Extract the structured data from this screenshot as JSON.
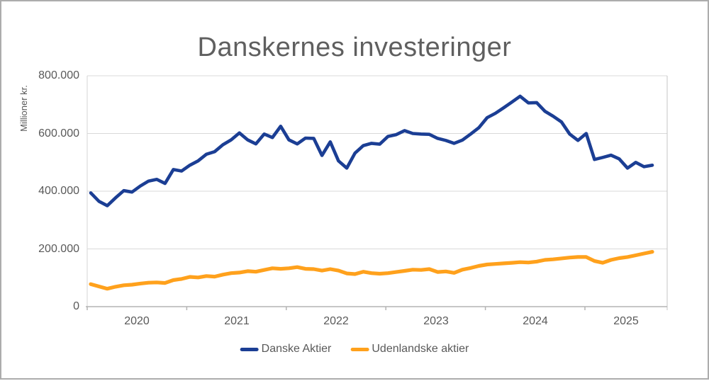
{
  "title": "Danskernes investeringer",
  "y_axis": {
    "label": "Millioner kr.",
    "ticks": [
      "800.000",
      "600.000",
      "400.000",
      "200.000",
      "0"
    ]
  },
  "x_axis": {
    "ticks": [
      "2020",
      "2021",
      "2022",
      "2023",
      "2024",
      "2025"
    ]
  },
  "legend": {
    "items": [
      {
        "label": "Danske Aktier",
        "color": "#1b3e94"
      },
      {
        "label": "Udenlandske aktier",
        "color": "#ffa11c"
      }
    ]
  },
  "chart_data": {
    "type": "line",
    "title": "Danskernes investeringer",
    "ylabel": "Millioner kr.",
    "unit": "millioner kr.",
    "ylim": [
      0,
      800000
    ],
    "y_tick_values": [
      800000,
      600000,
      400000,
      200000,
      0
    ],
    "grid": "horizontal gridlines on",
    "legend_position": "bottom",
    "x_frequency": "monthly",
    "x_start": "2020-01",
    "x_end": "2025-09",
    "x_tick_labels": [
      "2020",
      "2021",
      "2022",
      "2023",
      "2024",
      "2025"
    ],
    "series": [
      {
        "name": "Danske Aktier",
        "color": "#1b3e94",
        "values": [
          394000,
          365000,
          350000,
          377000,
          402000,
          397000,
          418000,
          435000,
          441000,
          427000,
          475000,
          470000,
          490000,
          505000,
          528000,
          537000,
          561000,
          578000,
          602000,
          578000,
          564000,
          598000,
          586000,
          625000,
          578000,
          564000,
          584000,
          583000,
          524000,
          571000,
          505000,
          480000,
          532000,
          558000,
          566000,
          563000,
          590000,
          596000,
          610000,
          600000,
          598000,
          597000,
          583000,
          576000,
          566000,
          577000,
          598000,
          620000,
          655000,
          670000,
          689000,
          709000,
          729000,
          706000,
          707000,
          677000,
          660000,
          640000,
          598000,
          576000,
          600000,
          510000,
          517000,
          525000,
          512000,
          480000,
          500000,
          485000,
          490000
        ]
      },
      {
        "name": "Udenlandske aktier",
        "color": "#ffa11c",
        "values": [
          78000,
          70000,
          62000,
          69000,
          74000,
          76000,
          80000,
          83000,
          84000,
          82000,
          92000,
          96000,
          103000,
          101000,
          106000,
          104000,
          111000,
          116000,
          118000,
          123000,
          121000,
          127000,
          133000,
          131000,
          133000,
          137000,
          131000,
          130000,
          125000,
          130000,
          125000,
          115000,
          113000,
          121000,
          116000,
          114000,
          116000,
          120000,
          124000,
          128000,
          127000,
          130000,
          120000,
          122000,
          117000,
          128000,
          134000,
          141000,
          146000,
          148000,
          150000,
          152000,
          154000,
          153000,
          156000,
          162000,
          164000,
          167000,
          170000,
          172000,
          172000,
          158000,
          152000,
          162000,
          168000,
          172000,
          178000,
          184000,
          190000
        ]
      }
    ]
  }
}
